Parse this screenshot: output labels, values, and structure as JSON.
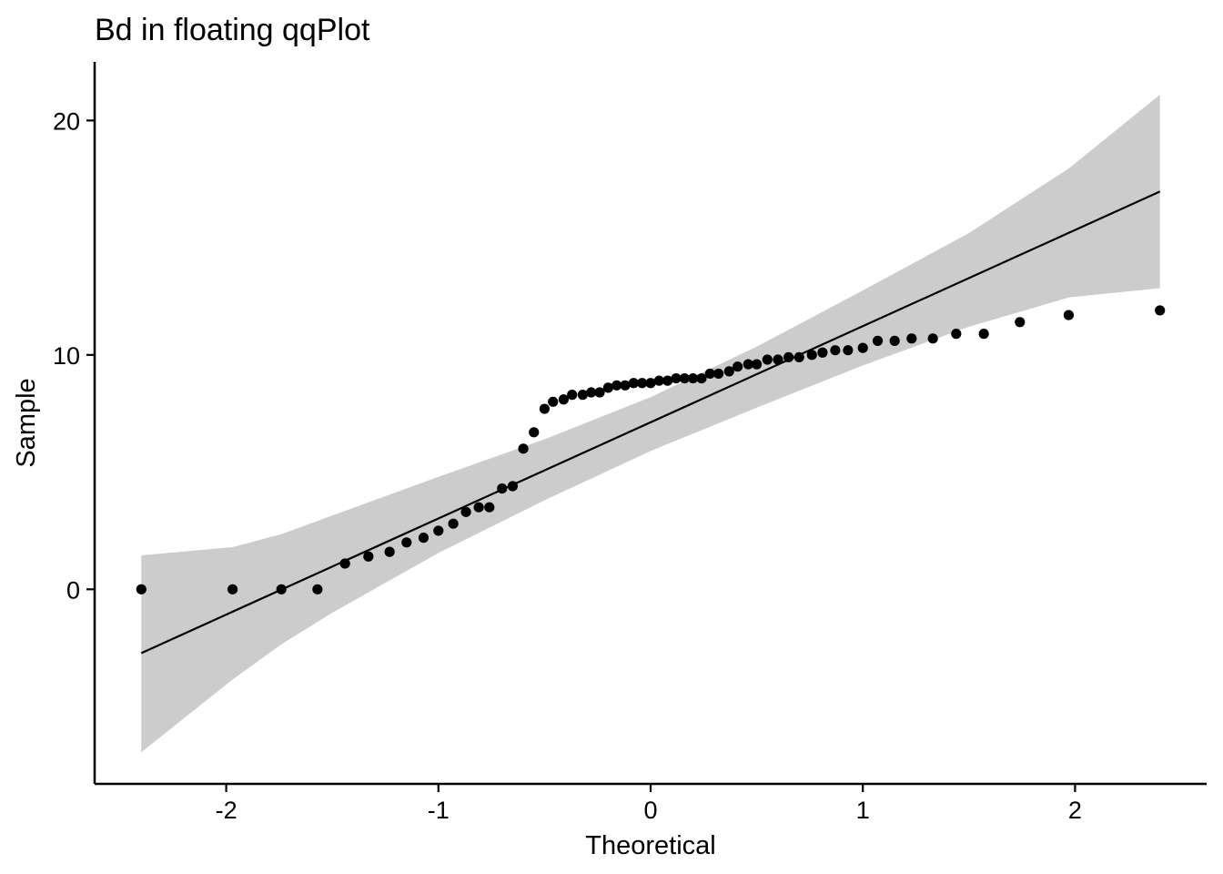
{
  "chart_data": {
    "type": "scatter",
    "title": "Bd in floating  qqPlot",
    "xlabel": "Theoretical",
    "ylabel": "Sample",
    "xlim": [
      -2.62,
      2.62
    ],
    "ylim": [
      -8.3,
      22.5
    ],
    "x_ticks": [
      -2,
      -1,
      0,
      1,
      2
    ],
    "x_tick_labels": [
      "-2",
      "-1",
      "0",
      "1",
      "2"
    ],
    "y_ticks": [
      0,
      10,
      20
    ],
    "y_tick_labels": [
      "0",
      "10",
      "20"
    ],
    "grid": false,
    "legend": "none",
    "colors": {
      "points": "#000000",
      "line": "#000000",
      "band": "#cccccc",
      "axis": "#000000",
      "background": "#ffffff"
    },
    "points": {
      "x": [
        -2.4,
        -1.97,
        -1.74,
        -1.57,
        -1.44,
        -1.33,
        -1.23,
        -1.15,
        -1.07,
        -1.0,
        -0.93,
        -0.87,
        -0.81,
        -0.76,
        -0.7,
        -0.65,
        -0.6,
        -0.55,
        -0.5,
        -0.46,
        -0.41,
        -0.37,
        -0.32,
        -0.28,
        -0.24,
        -0.2,
        -0.16,
        -0.12,
        -0.08,
        -0.04,
        0.0,
        0.04,
        0.08,
        0.12,
        0.16,
        0.2,
        0.24,
        0.28,
        0.32,
        0.37,
        0.41,
        0.46,
        0.5,
        0.55,
        0.6,
        0.65,
        0.7,
        0.76,
        0.81,
        0.87,
        0.93,
        1.0,
        1.07,
        1.15,
        1.23,
        1.33,
        1.44,
        1.57,
        1.74,
        1.97,
        2.4
      ],
      "y": [
        0.0,
        0.0,
        0.0,
        0.0,
        1.1,
        1.4,
        1.6,
        2.0,
        2.2,
        2.5,
        2.8,
        3.3,
        3.5,
        3.5,
        4.3,
        4.4,
        6.0,
        6.7,
        7.7,
        8.0,
        8.1,
        8.3,
        8.3,
        8.4,
        8.4,
        8.6,
        8.7,
        8.7,
        8.8,
        8.8,
        8.8,
        8.9,
        8.9,
        9.0,
        9.0,
        9.0,
        9.0,
        9.2,
        9.2,
        9.3,
        9.5,
        9.6,
        9.6,
        9.8,
        9.8,
        9.9,
        9.9,
        10.0,
        10.1,
        10.2,
        10.2,
        10.3,
        10.6,
        10.6,
        10.7,
        10.7,
        10.9,
        10.9,
        11.4,
        11.7,
        11.9
      ]
    },
    "reference_line": {
      "x": [
        -2.4,
        2.4
      ],
      "y": [
        -2.72,
        16.97
      ]
    },
    "confidence_band": {
      "x": [
        -2.4,
        -1.97,
        -1.74,
        -1.5,
        -1.0,
        -0.5,
        0.0,
        0.5,
        1.0,
        1.5,
        1.97,
        2.4
      ],
      "upper": [
        1.45,
        1.8,
        2.35,
        3.15,
        4.8,
        6.4,
        8.2,
        10.35,
        12.75,
        15.2,
        17.95,
        21.1
      ],
      "lower": [
        -6.95,
        -3.85,
        -2.35,
        -1.0,
        1.55,
        3.8,
        5.9,
        7.75,
        9.55,
        11.2,
        12.45,
        12.85
      ]
    }
  }
}
